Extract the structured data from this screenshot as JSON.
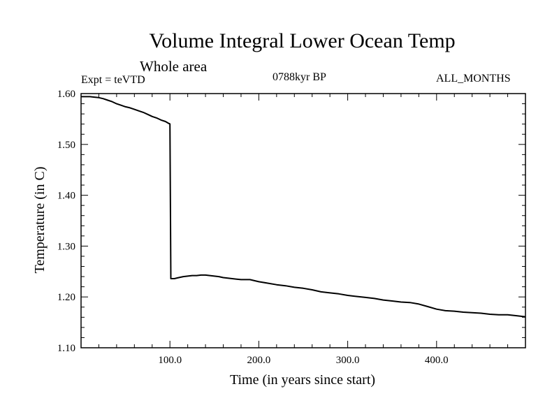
{
  "header": {
    "title": "Volume Integral Lower Ocean Temp",
    "subtitle": "Whole area",
    "expt": "Expt = teVTD",
    "center_label": "0788kyr BP",
    "months": "ALL_MONTHS"
  },
  "chart_data": {
    "type": "line",
    "title": "Volume Integral Lower Ocean Temp",
    "xlabel": "Time (in years since start)",
    "ylabel": "Temperature (in C)",
    "xlim": [
      0,
      500
    ],
    "ylim": [
      1.1,
      1.6
    ],
    "xticks": [
      100.0,
      200.0,
      300.0,
      400.0
    ],
    "xtick_labels": [
      "100.0",
      "200.0",
      "300.0",
      "400.0"
    ],
    "yticks": [
      1.1,
      1.2,
      1.3,
      1.4,
      1.5,
      1.6
    ],
    "ytick_labels": [
      "1.10",
      "1.20",
      "1.30",
      "1.40",
      "1.50",
      "1.60"
    ],
    "grid": false,
    "series": [
      {
        "x": [
          0,
          5,
          10,
          15,
          20,
          25,
          30,
          35,
          40,
          45,
          50,
          55,
          60,
          65,
          70,
          75,
          80,
          85,
          90,
          95,
          99,
          99.5,
          100,
          101,
          105,
          110,
          115,
          120,
          125,
          130,
          135,
          140,
          145,
          150,
          155,
          160,
          165,
          170,
          175,
          180,
          185,
          190,
          195,
          200,
          210,
          220,
          230,
          240,
          250,
          260,
          270,
          280,
          290,
          300,
          310,
          320,
          330,
          340,
          350,
          360,
          370,
          380,
          390,
          400,
          410,
          420,
          430,
          440,
          450,
          460,
          470,
          480,
          490,
          500
        ],
        "y": [
          1.594,
          1.594,
          1.594,
          1.593,
          1.592,
          1.59,
          1.587,
          1.584,
          1.58,
          1.577,
          1.574,
          1.572,
          1.569,
          1.566,
          1.563,
          1.559,
          1.555,
          1.552,
          1.548,
          1.545,
          1.541,
          1.541,
          1.54,
          1.236,
          1.236,
          1.238,
          1.24,
          1.241,
          1.242,
          1.242,
          1.243,
          1.243,
          1.242,
          1.241,
          1.24,
          1.238,
          1.237,
          1.236,
          1.235,
          1.234,
          1.234,
          1.234,
          1.232,
          1.23,
          1.227,
          1.224,
          1.222,
          1.219,
          1.217,
          1.214,
          1.21,
          1.208,
          1.206,
          1.203,
          1.201,
          1.199,
          1.197,
          1.194,
          1.192,
          1.19,
          1.189,
          1.186,
          1.181,
          1.176,
          1.173,
          1.172,
          1.17,
          1.169,
          1.168,
          1.166,
          1.165,
          1.165,
          1.163,
          1.161
        ]
      }
    ]
  }
}
